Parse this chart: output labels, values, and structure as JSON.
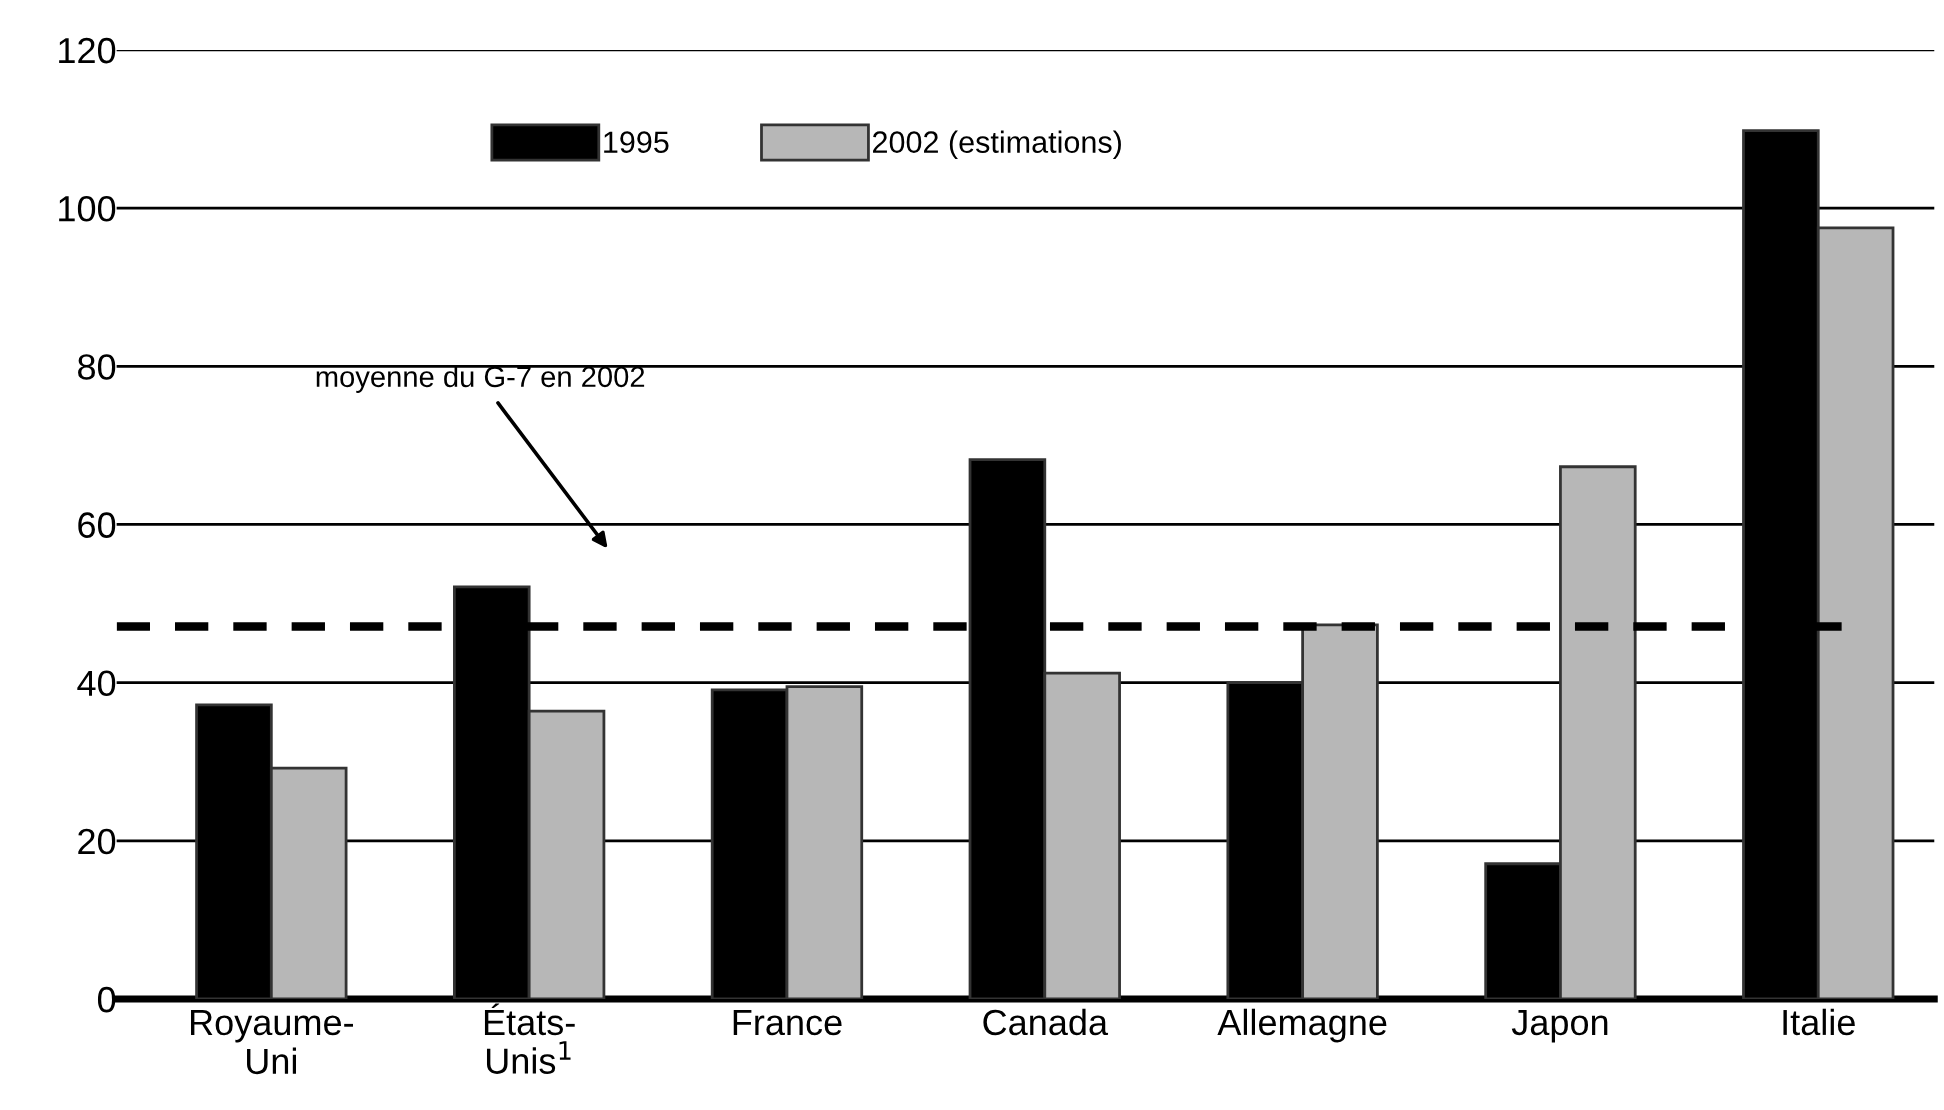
{
  "chart_data": {
    "type": "bar",
    "categories": [
      "Royaume-\nUni",
      "États-\nUnis$^{1}$",
      "France",
      "Canada",
      "Allemagne",
      "Japon",
      "Italie"
    ],
    "series": [
      {
        "name": "1995",
        "color": "#000000",
        "values": [
          37.2,
          52.1,
          39.1,
          68.2,
          40.0,
          17.1,
          109.8
        ]
      },
      {
        "name": "2002 (estimations)",
        "color": "#b7b7b7",
        "values": [
          29.2,
          36.4,
          39.5,
          41.2,
          47.3,
          67.3,
          97.5
        ]
      }
    ],
    "ylim": [
      0,
      120
    ],
    "yticks": [
      0,
      20,
      40,
      60,
      80,
      100,
      120
    ],
    "grid": "y",
    "legend": "top",
    "ref_lines": [
      {
        "axis": "y",
        "value": 47.1,
        "color": "#000000",
        "line_style": "dashed"
      }
    ],
    "annotations": [
      "moyenne du G-7 en 2002"
    ]
  }
}
